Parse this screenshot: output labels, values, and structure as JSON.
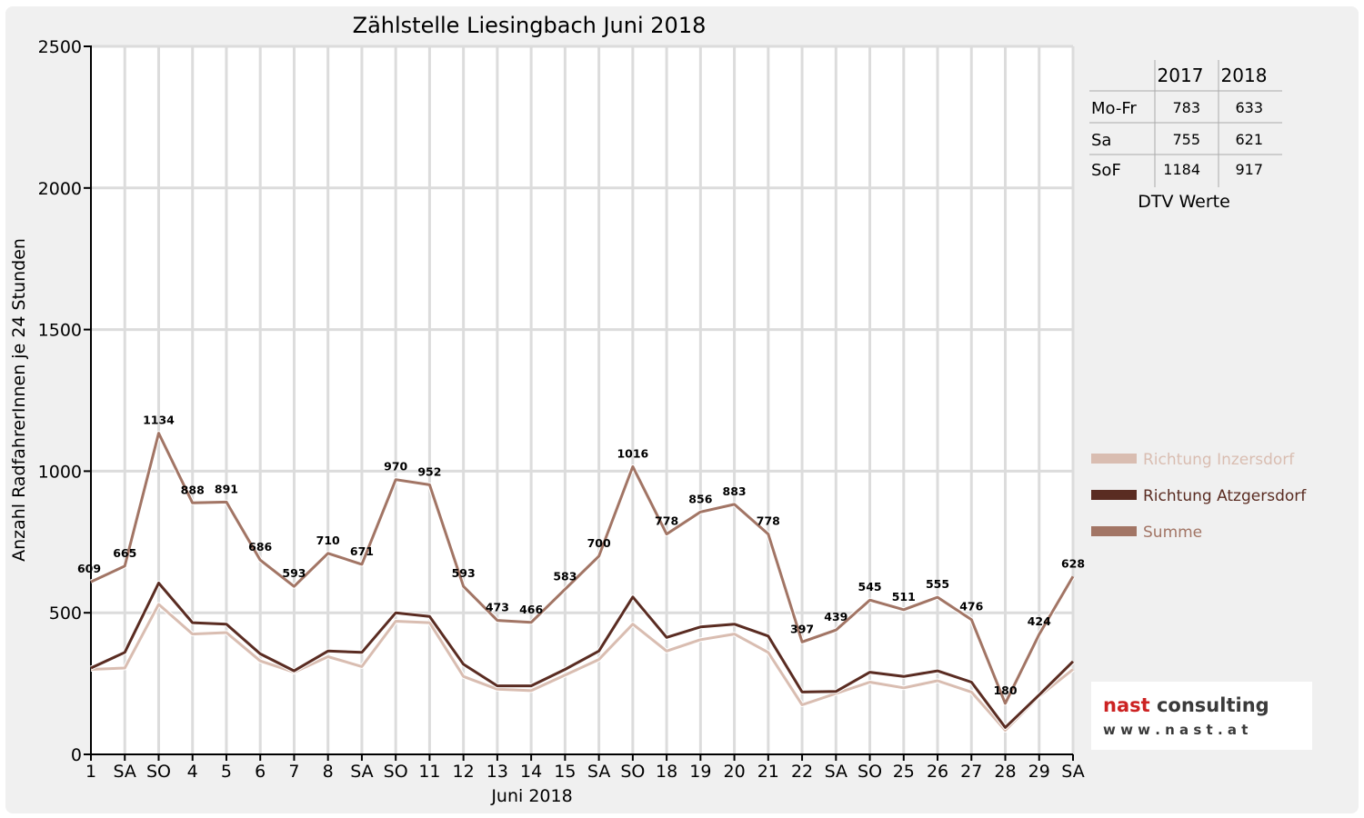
{
  "chart_data": {
    "type": "line",
    "title": "Zählstelle Liesingbach Juni 2018",
    "xlabel": "Juni 2018",
    "ylabel": "Anzahl RadfahrerInnen je 24 Stunden",
    "ylim": [
      0,
      2500
    ],
    "yticks": [
      0,
      500,
      1000,
      1500,
      2000,
      2500
    ],
    "grid": true,
    "legend_position": "right",
    "categories": [
      "1",
      "SA",
      "SO",
      "4",
      "5",
      "6",
      "7",
      "8",
      "SA",
      "SO",
      "11",
      "12",
      "13",
      "14",
      "15",
      "SA",
      "SO",
      "18",
      "19",
      "20",
      "21",
      "22",
      "SA",
      "SO",
      "25",
      "26",
      "27",
      "28",
      "29",
      "SA"
    ],
    "highlight_categories": [
      2,
      9,
      16,
      23
    ],
    "highlight_color": "#ff0000",
    "series": [
      {
        "name": "Richtung Inzersdorf",
        "color": "#d9bdb1",
        "values": [
          300,
          305,
          530,
          425,
          430,
          330,
          290,
          345,
          310,
          470,
          465,
          275,
          230,
          225,
          280,
          335,
          460,
          365,
          405,
          425,
          360,
          175,
          215,
          255,
          235,
          260,
          220,
          85,
          205,
          300
        ]
      },
      {
        "name": "Richtung Atzgersdorf",
        "color": "#5a2c22",
        "values": [
          305,
          360,
          605,
          465,
          460,
          355,
          295,
          365,
          360,
          500,
          487,
          318,
          242,
          242,
          300,
          365,
          556,
          413,
          450,
          460,
          418,
          220,
          222,
          290,
          275,
          295,
          255,
          95,
          210,
          328
        ]
      },
      {
        "name": "Summe",
        "color": "#a27565",
        "values": [
          609,
          665,
          1134,
          888,
          891,
          686,
          593,
          710,
          671,
          970,
          952,
          593,
          473,
          466,
          583,
          700,
          1016,
          778,
          856,
          883,
          778,
          397,
          439,
          545,
          511,
          555,
          476,
          180,
          424,
          628
        ]
      }
    ],
    "data_labels": [
      609,
      665,
      1134,
      888,
      891,
      686,
      593,
      710,
      671,
      970,
      952,
      593,
      473,
      466,
      583,
      700,
      1016,
      778,
      856,
      883,
      778,
      397,
      439,
      545,
      511,
      555,
      476,
      180,
      424,
      628
    ]
  },
  "dtv_table": {
    "columns": [
      "2017",
      "2018"
    ],
    "rows": [
      {
        "label": "Mo-Fr",
        "v2017": "783",
        "v2018": "633"
      },
      {
        "label": "Sa",
        "v2017": "755",
        "v2018": "621"
      },
      {
        "label": "SoF",
        "v2017": "1184",
        "v2018": "917"
      }
    ],
    "caption": "DTV Werte"
  },
  "logo": {
    "name": "nast consulting",
    "url": "w w w . n a s t . a t",
    "name_color": "#cc2222",
    "name_color_rest": "#3a3a3a"
  }
}
